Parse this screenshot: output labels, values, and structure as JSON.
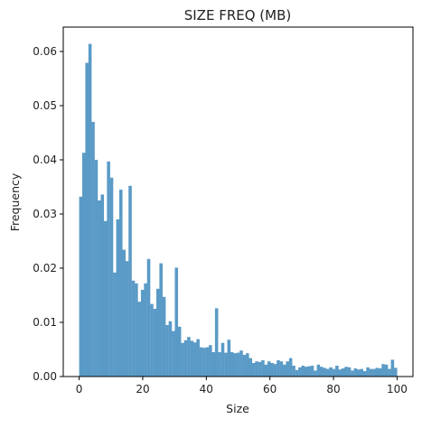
{
  "chart_data": {
    "type": "bar",
    "title": "SIZE FREQ (MB)",
    "xlabel": "Size",
    "ylabel": "Frequency",
    "xlim": [
      -5,
      105
    ],
    "ylim": [
      0,
      0.0645
    ],
    "x_ticks": [
      0,
      20,
      40,
      60,
      80,
      100
    ],
    "x_tick_labels": [
      "0",
      "20",
      "40",
      "60",
      "80",
      "100"
    ],
    "y_ticks": [
      0.0,
      0.01,
      0.02,
      0.03,
      0.04,
      0.05,
      0.06
    ],
    "y_tick_labels": [
      "0.00",
      "0.01",
      "0.02",
      "0.03",
      "0.04",
      "0.05",
      "0.06"
    ],
    "bin_start": 0,
    "bin_width": 1,
    "bar_color": "#5a9ac6",
    "values": [
      0.0332,
      0.0413,
      0.0579,
      0.0614,
      0.047,
      0.04,
      0.0325,
      0.0336,
      0.0287,
      0.0397,
      0.0367,
      0.0192,
      0.029,
      0.0345,
      0.0234,
      0.0213,
      0.0352,
      0.0177,
      0.0172,
      0.0138,
      0.016,
      0.0172,
      0.0217,
      0.0134,
      0.0125,
      0.0162,
      0.0209,
      0.0147,
      0.0095,
      0.0102,
      0.0084,
      0.0201,
      0.0092,
      0.0062,
      0.0067,
      0.0073,
      0.0066,
      0.0063,
      0.0069,
      0.0054,
      0.0053,
      0.0054,
      0.0058,
      0.0045,
      0.0126,
      0.0045,
      0.0062,
      0.0044,
      0.0068,
      0.0045,
      0.0043,
      0.0044,
      0.0048,
      0.004,
      0.0043,
      0.0034,
      0.0025,
      0.0028,
      0.0027,
      0.003,
      0.0022,
      0.0028,
      0.0025,
      0.0023,
      0.003,
      0.0028,
      0.0022,
      0.0028,
      0.0034,
      0.002,
      0.0012,
      0.0017,
      0.002,
      0.0018,
      0.0019,
      0.002,
      0.0011,
      0.0022,
      0.0018,
      0.0016,
      0.0014,
      0.0017,
      0.0014,
      0.002,
      0.0013,
      0.0015,
      0.0018,
      0.0017,
      0.0011,
      0.0015,
      0.0013,
      0.0014,
      0.001,
      0.0017,
      0.0014,
      0.0014,
      0.0016,
      0.0015,
      0.0023,
      0.0022,
      0.0014,
      0.0031,
      0.0016
    ]
  }
}
